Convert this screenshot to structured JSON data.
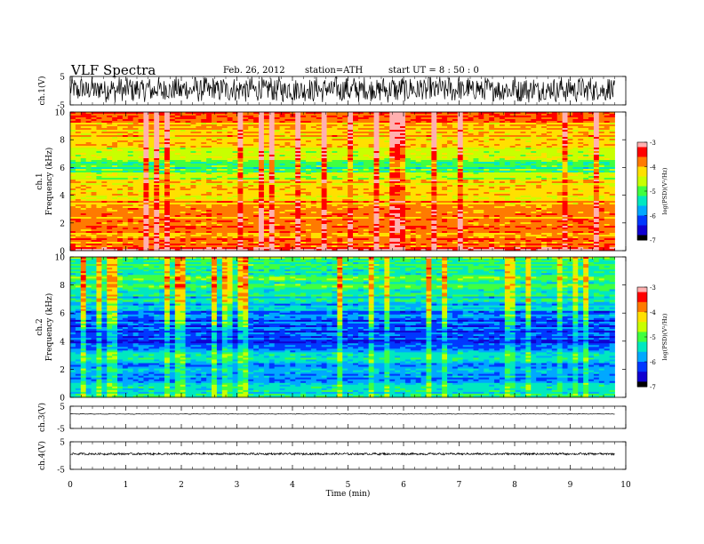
{
  "header": {
    "title": "VLF  Spectra",
    "date": "Feb. 26, 2012",
    "station": "station=ATH",
    "start_ut": "start  UT  =   8  : 50 : 0"
  },
  "colors": {
    "colormap": [
      "#000000",
      "#1000d0",
      "#0038ff",
      "#00a8ff",
      "#00e8c0",
      "#40ff40",
      "#c8ff00",
      "#ffe000",
      "#ff7a00",
      "#ff0000",
      "#ffb0b0"
    ],
    "trace": "#000000"
  },
  "chart_data": [
    {
      "type": "line",
      "panel": "ch1-waveform",
      "ylabel": "ch.1(V)",
      "ylim": [
        -5,
        5
      ],
      "yticks": [
        "5",
        "-5"
      ],
      "xlim": [
        0,
        10
      ],
      "x_end_min": 9.8,
      "baseline_v": 0.4,
      "amplitude_v": 2.5
    },
    {
      "type": "heatmap",
      "panel": "ch1-spectrogram",
      "ylabel": "ch.1 Frequency  (kHz)",
      "ylim": [
        0,
        10
      ],
      "yticks": [
        "0",
        "2",
        "4",
        "6",
        "8",
        "10"
      ],
      "xlim": [
        0,
        10
      ],
      "x_end_min": 9.8,
      "colorbar": {
        "label": "log(PSD)(V²/Hz)",
        "range": [
          -7,
          -3
        ],
        "ticks": [
          "-3",
          "-4",
          "-5",
          "-6",
          "-7"
        ]
      },
      "profile": [
        {
          "f": 0.0,
          "v": -3.3
        },
        {
          "f": 0.5,
          "v": -3.6
        },
        {
          "f": 1.0,
          "v": -3.8
        },
        {
          "f": 2.0,
          "v": -3.8
        },
        {
          "f": 3.0,
          "v": -3.9
        },
        {
          "f": 4.0,
          "v": -4.1
        },
        {
          "f": 5.0,
          "v": -4.3
        },
        {
          "f": 5.5,
          "v": -4.9
        },
        {
          "f": 6.0,
          "v": -5.1
        },
        {
          "f": 7.0,
          "v": -4.6
        },
        {
          "f": 8.0,
          "v": -4.2
        },
        {
          "f": 9.0,
          "v": -3.9
        },
        {
          "f": 10.0,
          "v": -3.8
        }
      ]
    },
    {
      "type": "heatmap",
      "panel": "ch2-spectrogram",
      "ylabel": "ch.2 Frequency  (kHz)",
      "ylim": [
        0,
        10
      ],
      "yticks": [
        "0",
        "2",
        "4",
        "6",
        "8",
        "10"
      ],
      "xlim": [
        0,
        10
      ],
      "x_end_min": 9.8,
      "colorbar": {
        "label": "log(PSD)(V²/Hz)",
        "range": [
          -7,
          -3
        ],
        "ticks": [
          "-3",
          "-4",
          "-5",
          "-6",
          "-7"
        ]
      },
      "profile": [
        {
          "f": 0.0,
          "v": -5.6
        },
        {
          "f": 0.5,
          "v": -5.3
        },
        {
          "f": 1.0,
          "v": -5.8
        },
        {
          "f": 2.0,
          "v": -5.9
        },
        {
          "f": 3.0,
          "v": -5.4
        },
        {
          "f": 3.5,
          "v": -6.2
        },
        {
          "f": 4.5,
          "v": -6.3
        },
        {
          "f": 5.5,
          "v": -6.1
        },
        {
          "f": 6.5,
          "v": -5.7
        },
        {
          "f": 7.5,
          "v": -5.3
        },
        {
          "f": 9.0,
          "v": -5.1
        },
        {
          "f": 10.0,
          "v": -5.0
        }
      ]
    },
    {
      "type": "line",
      "panel": "ch3-waveform",
      "ylabel": "ch.3(V)",
      "ylim": [
        -5,
        5
      ],
      "yticks": [
        "5",
        "-5"
      ],
      "xlim": [
        0,
        10
      ],
      "x_end_min": 9.8,
      "baseline_v": 1.5,
      "amplitude_v": 0.15
    },
    {
      "type": "line",
      "panel": "ch4-waveform",
      "ylabel": "ch.4(V)",
      "ylim": [
        -5,
        5
      ],
      "yticks": [
        "5",
        "-5"
      ],
      "xlim": [
        0,
        10
      ],
      "x_end_min": 9.8,
      "baseline_v": 0.6,
      "amplitude_v": 0.25
    }
  ],
  "x_axis": {
    "label": "Time  (min)",
    "ticks": [
      "0",
      "1",
      "2",
      "3",
      "4",
      "5",
      "6",
      "7",
      "8",
      "9",
      "10"
    ]
  }
}
